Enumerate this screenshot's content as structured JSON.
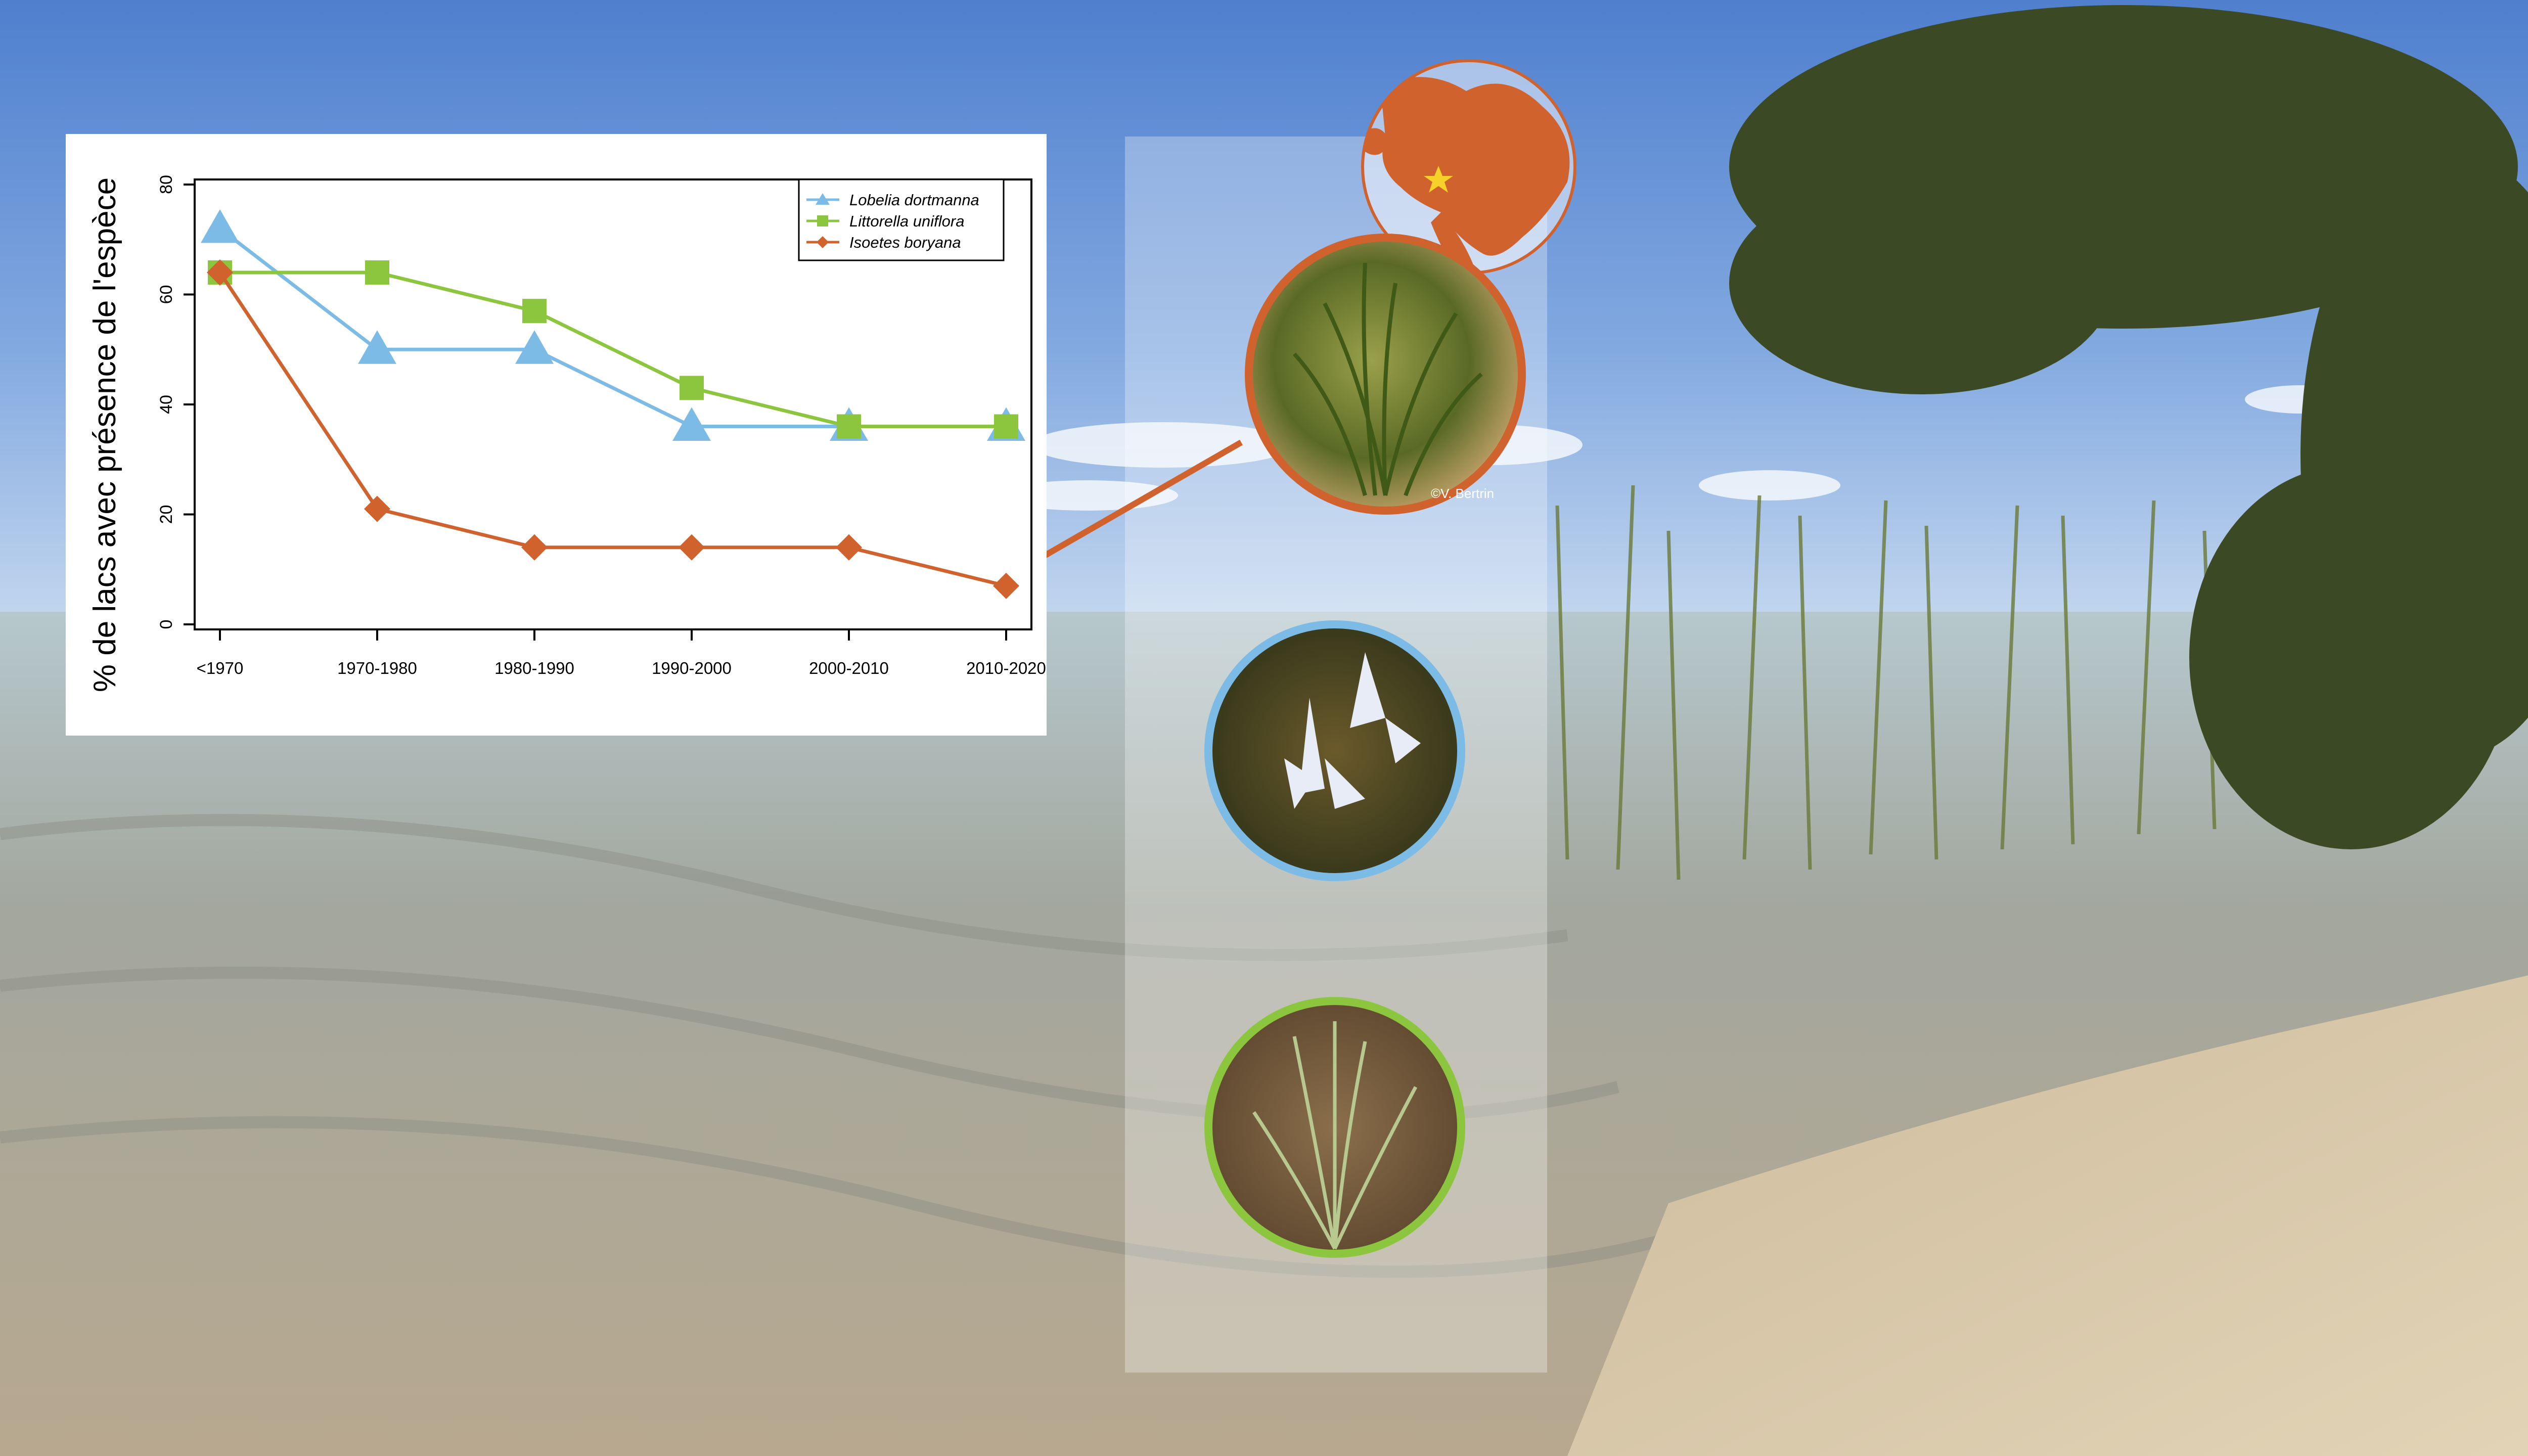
{
  "colors": {
    "lobelia": "#7cbbe6",
    "littorella": "#8cc63f",
    "isoetes": "#d0622e",
    "panel": "#ffffff"
  },
  "chart_data": {
    "type": "line",
    "ylabel": "% de lacs avec présence de l'espèce",
    "xlabel": "",
    "categories": [
      "<1970",
      "1970-1980",
      "1980-1990",
      "1990-2000",
      "2000-2010",
      "2010-2020"
    ],
    "ylim": [
      0,
      80
    ],
    "yticks": [
      0,
      20,
      40,
      60,
      80
    ],
    "grid": false,
    "legend_position": "top-right",
    "series": [
      {
        "name": "Lobelia dortmanna",
        "marker": "triangle",
        "color": "#7cbbe6",
        "values": [
          72,
          50,
          50,
          36,
          36,
          36
        ]
      },
      {
        "name": "Littorella uniflora",
        "marker": "square",
        "color": "#8cc63f",
        "values": [
          64,
          64,
          57,
          43,
          36,
          36
        ]
      },
      {
        "name": "Isoetes boryana",
        "marker": "diamond",
        "color": "#d0622e",
        "values": [
          64,
          21,
          14,
          14,
          14,
          7
        ]
      }
    ]
  },
  "photo_credit": "©V. Bertrin",
  "icons": {
    "globe": "globe-europe-icon",
    "location": "star-location-icon"
  }
}
